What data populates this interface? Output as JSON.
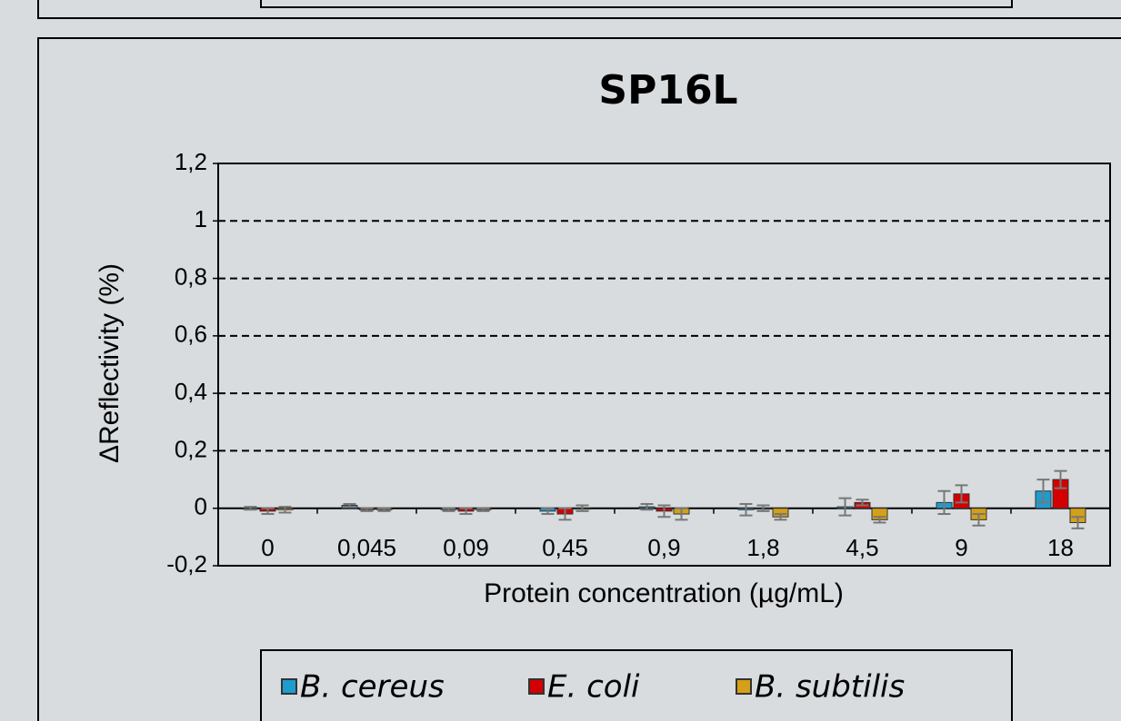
{
  "chart_data": {
    "type": "bar",
    "title": "SP16L",
    "x_label": "Protein concentration (µg/mL)",
    "y_label": "ΔReflectivity (%)",
    "categories": [
      "0",
      "0,045",
      "0,09",
      "0,45",
      "0,9",
      "1,8",
      "4,5",
      "9",
      "18"
    ],
    "series": [
      {
        "name": "B. cereus",
        "color": "#1e9cd0",
        "values": [
          0.0,
          0.01,
          -0.005,
          -0.01,
          0.005,
          -0.005,
          0.005,
          0.02,
          0.06
        ],
        "errors": [
          0.005,
          0.005,
          0.005,
          0.01,
          0.01,
          0.02,
          0.03,
          0.04,
          0.04
        ]
      },
      {
        "name": "E. coli",
        "color": "#d40000",
        "values": [
          -0.01,
          -0.005,
          -0.01,
          -0.02,
          -0.01,
          0.0,
          0.02,
          0.05,
          0.1
        ],
        "errors": [
          0.01,
          0.005,
          0.01,
          0.02,
          0.02,
          0.01,
          0.01,
          0.03,
          0.03
        ]
      },
      {
        "name": "B. subtilis",
        "color": "#d4a017",
        "values": [
          -0.005,
          -0.005,
          -0.005,
          0.0,
          -0.02,
          -0.03,
          -0.04,
          -0.04,
          -0.05
        ],
        "errors": [
          0.01,
          0.005,
          0.005,
          0.01,
          0.02,
          0.01,
          0.01,
          0.02,
          0.02
        ]
      }
    ],
    "ylim": [
      -0.2,
      1.2
    ],
    "yticks": [
      {
        "value": -0.2,
        "label": "-0,2"
      },
      0,
      {
        "value": 0.2,
        "label": "0,2"
      },
      {
        "value": 0.4,
        "label": "0,4"
      },
      {
        "value": 0.6,
        "label": "0,6"
      },
      {
        "value": 0.8,
        "label": "0,8"
      },
      1,
      {
        "value": 1.2,
        "label": "1,2"
      }
    ],
    "grid": true,
    "legend": "bottom"
  }
}
